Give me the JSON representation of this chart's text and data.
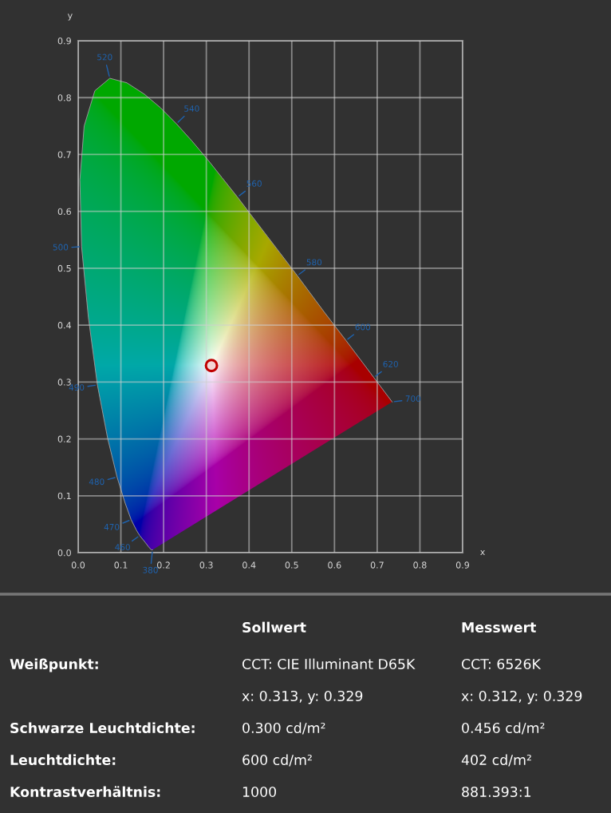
{
  "chart_data": [
    {
      "type": "line",
      "xlabel": "x",
      "ylabel": "y",
      "xlim": [
        0.0,
        0.9
      ],
      "ylim": [
        0.0,
        0.9
      ],
      "xticks": [
        {
          "value": 0,
          "label": "0.0"
        },
        0.1,
        0.2,
        0.3,
        0.4,
        0.5,
        0.6,
        0.7,
        0.8,
        0.9
      ],
      "yticks": [
        {
          "value": 0,
          "label": "0.0"
        },
        0.1,
        0.2,
        0.3,
        0.4,
        0.5,
        0.6,
        0.7,
        0.8,
        0.9
      ],
      "grid": true,
      "series": [
        {
          "type": "line",
          "color": "#9a9a9a",
          "line_style": "solid",
          "x": [
            0.174,
            0.171,
            0.164,
            0.157,
            0.144,
            0.136,
            0.124,
            0.11,
            0.091,
            0.069,
            0.045,
            0.024,
            0.008,
            0.004,
            0.014,
            0.039,
            0.074,
            0.114,
            0.155,
            0.193,
            0.23,
            0.266,
            0.302,
            0.337,
            0.373,
            0.444,
            0.513,
            0.575,
            0.627,
            0.666,
            0.692,
            0.708,
            0.719,
            0.726,
            0.735
          ],
          "values": [
            0.005,
            0.005,
            0.011,
            0.018,
            0.03,
            0.04,
            0.058,
            0.087,
            0.133,
            0.201,
            0.295,
            0.413,
            0.538,
            0.655,
            0.75,
            0.812,
            0.834,
            0.826,
            0.806,
            0.782,
            0.754,
            0.724,
            0.692,
            0.659,
            0.625,
            0.555,
            0.487,
            0.424,
            0.373,
            0.334,
            0.308,
            0.292,
            0.281,
            0.274,
            0.265
          ]
        },
        {
          "type": "scatter",
          "color": "#c00000",
          "marker": "circle",
          "x": [
            0.312
          ],
          "values": [
            0.329
          ]
        }
      ],
      "annotations": [
        {
          "text": "380",
          "x": 0.174,
          "y": 0.005
        },
        {
          "text": "460",
          "x": 0.144,
          "y": 0.03
        },
        {
          "text": "470",
          "x": 0.124,
          "y": 0.058
        },
        {
          "text": "480",
          "x": 0.091,
          "y": 0.133
        },
        {
          "text": "490",
          "x": 0.045,
          "y": 0.295
        },
        {
          "text": "500",
          "x": 0.008,
          "y": 0.538
        },
        {
          "text": "520",
          "x": 0.074,
          "y": 0.834
        },
        {
          "text": "540",
          "x": 0.23,
          "y": 0.754
        },
        {
          "text": "560",
          "x": 0.373,
          "y": 0.625
        },
        {
          "text": "580",
          "x": 0.513,
          "y": 0.487
        },
        {
          "text": "600",
          "x": 0.627,
          "y": 0.373
        },
        {
          "text": "620",
          "x": 0.692,
          "y": 0.308
        },
        {
          "text": "700",
          "x": 0.735,
          "y": 0.265
        }
      ]
    },
    {
      "type": "other",
      "categories": [
        "Sollwert",
        "Messwert"
      ],
      "y_categories": [
        "Weißpunkt:",
        null,
        "Schwarze Leuchtdichte:",
        "Leuchtdichte:",
        "Kontrastverhältnis:"
      ],
      "cell_labels": [
        [
          "CCT: CIE Illuminant D65K",
          "CCT: 6526K"
        ],
        [
          "x: 0.313, y: 0.329",
          "x: 0.312, y: 0.329"
        ],
        [
          "0.300 cd/m²",
          "0.456 cd/m²"
        ],
        [
          "600 cd/m²",
          "402 cd/m²"
        ],
        [
          "1000",
          "881.393:1"
        ]
      ]
    }
  ]
}
